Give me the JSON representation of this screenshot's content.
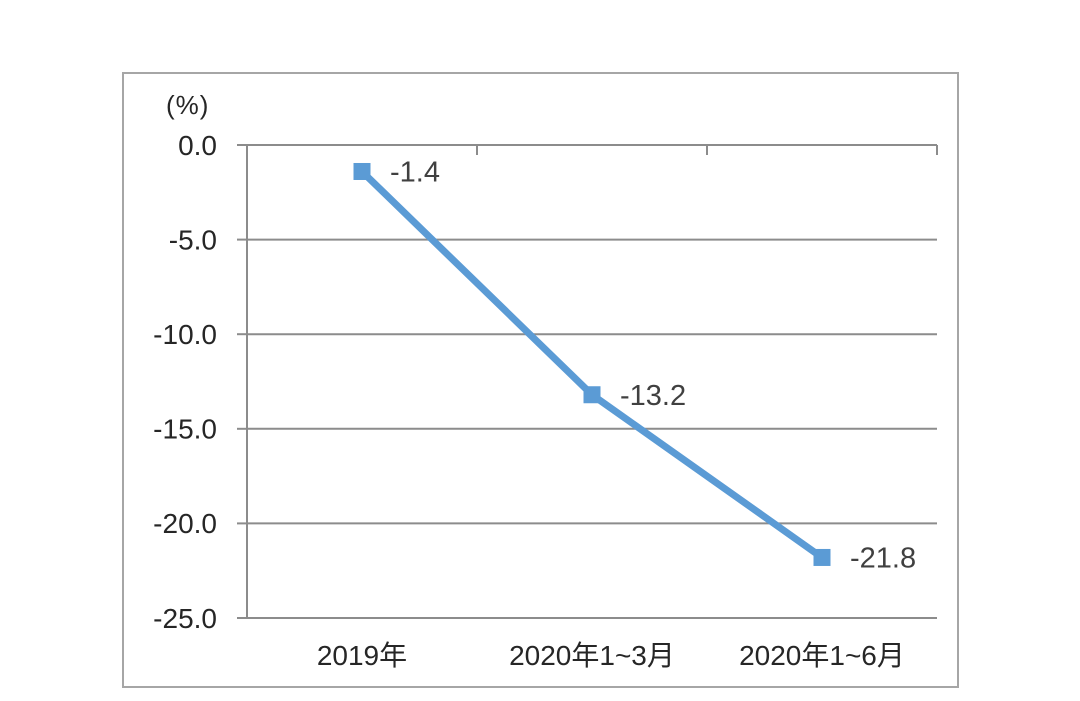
{
  "chart_data": {
    "type": "line",
    "unit_label": "(%)",
    "categories": [
      "2019年",
      "2020年1~3月",
      "2020年1~6月"
    ],
    "series": [
      {
        "name": "series-1",
        "values": [
          -1.4,
          -13.2,
          -21.8
        ]
      }
    ],
    "data_labels": [
      "-1.4",
      "-13.2",
      "-21.8"
    ],
    "y_ticks": [
      0,
      -5,
      -10,
      -15,
      -20,
      -25
    ],
    "y_tick_labels": [
      "0.0",
      "-5.0",
      "-10.0",
      "-15.0",
      "-20.0",
      "-25.0"
    ],
    "ylim": [
      -25,
      0
    ],
    "grid": true,
    "legend": "none",
    "marker_shape": "square"
  },
  "colors": {
    "line": "#5B9BD5",
    "marker": "#5B9BD5",
    "gridline": "#8C8C8C",
    "axis": "#8C8C8C",
    "frame_border": "#A6A6A6",
    "data_label_text": "#404040",
    "tick_label_text": "#262626",
    "background": "#FFFFFF"
  }
}
